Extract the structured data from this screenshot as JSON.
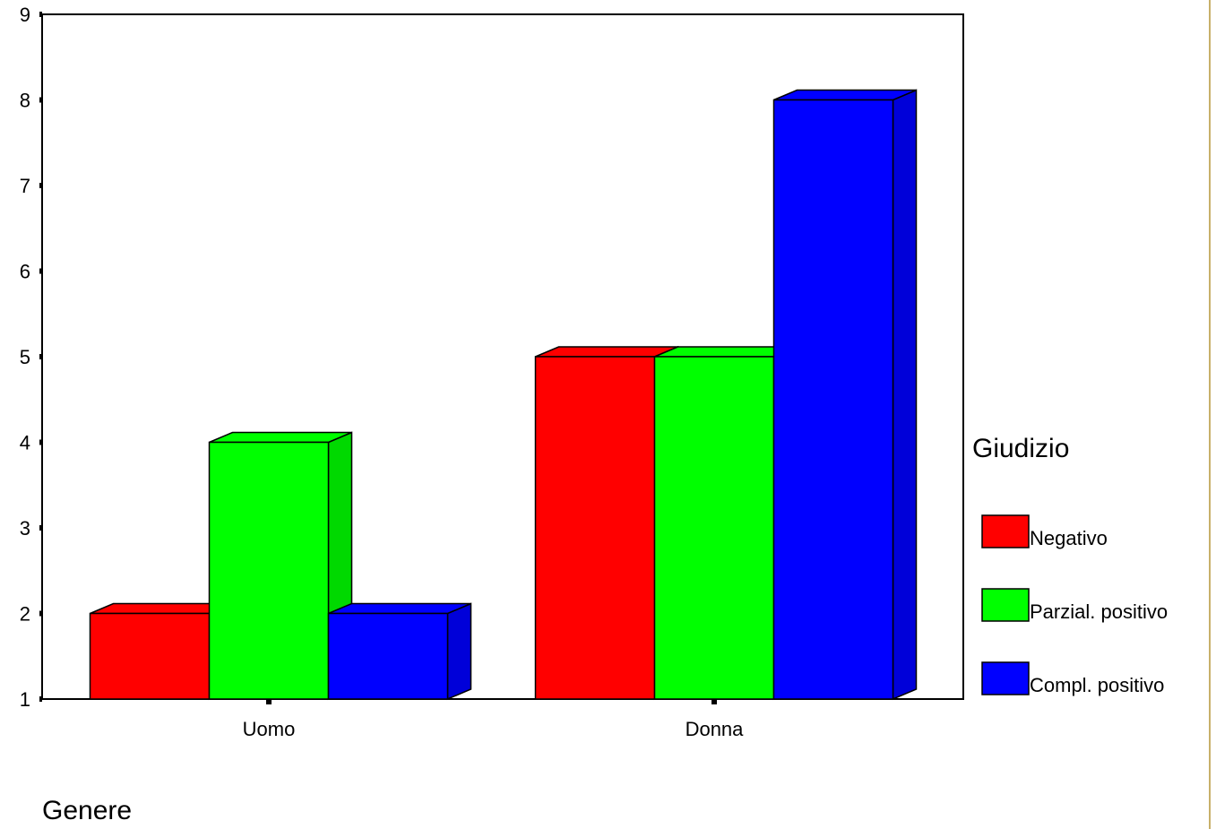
{
  "chart_data": {
    "type": "bar",
    "style": "3d-clustered",
    "title": "",
    "xlabel": "Genere",
    "ylabel": "",
    "categories": [
      "Uomo",
      "Donna"
    ],
    "series": [
      {
        "name": "Negativo",
        "color": "#ff0000",
        "values": [
          2,
          5
        ]
      },
      {
        "name": "Parzial. positivo",
        "color": "#00ff00",
        "values": [
          4,
          5
        ]
      },
      {
        "name": "Compl. positivo",
        "color": "#0000ff",
        "values": [
          2,
          8
        ]
      }
    ],
    "ylim": [
      1,
      9
    ],
    "yticks": [
      "1",
      "2",
      "3",
      "4",
      "5",
      "6",
      "7",
      "8",
      "9"
    ],
    "grid": false,
    "legend": {
      "title": "Giudizio",
      "position": "right"
    }
  }
}
